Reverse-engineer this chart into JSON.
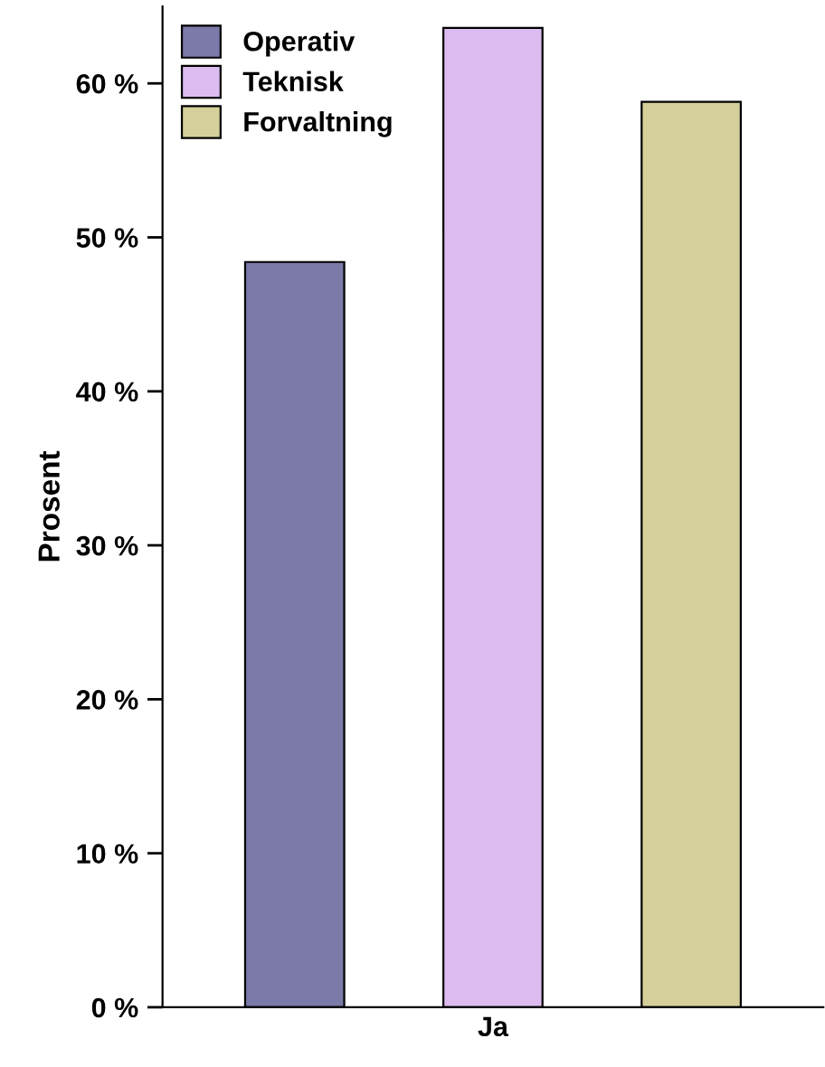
{
  "chart_data": {
    "type": "bar",
    "ylabel": "Prosent",
    "categories": [
      "Ja"
    ],
    "series": [
      {
        "name": "Operativ",
        "color": "#7b7aa8",
        "values": [
          48.4
        ]
      },
      {
        "name": "Teknisk",
        "color": "#dcbcef",
        "values": [
          63.6
        ]
      },
      {
        "name": "Forvaltning",
        "color": "#d5d09a",
        "values": [
          58.8
        ]
      }
    ],
    "ylim": [
      0,
      65
    ],
    "yticks": [
      {
        "value": 0,
        "label": "0 %"
      },
      {
        "value": 10,
        "label": "10 %"
      },
      {
        "value": 20,
        "label": "20 %"
      },
      {
        "value": 30,
        "label": "30 %"
      },
      {
        "value": 40,
        "label": "40 %"
      },
      {
        "value": 50,
        "label": "50 %"
      },
      {
        "value": 60,
        "label": "60 %"
      }
    ],
    "grid": false,
    "legend": "top left"
  }
}
